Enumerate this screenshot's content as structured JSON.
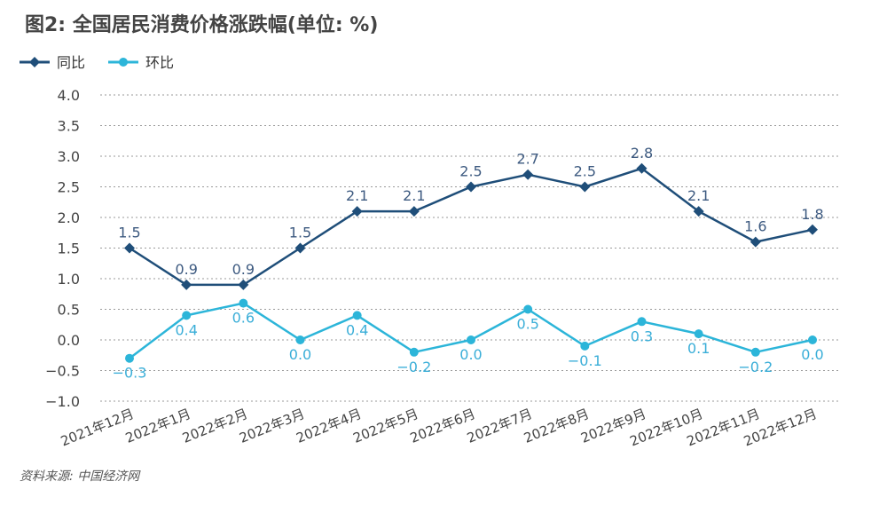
{
  "chart_data": {
    "type": "line",
    "title": "图2: 全国居民消费价格涨跌幅(单位: %)",
    "source": "资料来源: 中国经济网",
    "categories": [
      "2021年12月",
      "2022年1月",
      "2022年2月",
      "2022年3月",
      "2022年4月",
      "2022年5月",
      "2022年6月",
      "2022年7月",
      "2022年8月",
      "2022年9月",
      "2022年10月",
      "2022年11月",
      "2022年12月"
    ],
    "ylim": [
      -1.0,
      4.0
    ],
    "yticks": [
      "4.0",
      "3.5",
      "3.0",
      "2.5",
      "2.0",
      "1.5",
      "1.0",
      "0.5",
      "0.0",
      "−0.5",
      "−1.0"
    ],
    "grid": true,
    "legend_position": "top-left",
    "series": [
      {
        "name": "同比",
        "color": "#1f4e79",
        "marker": "diamond",
        "label_position": "above",
        "values": [
          1.5,
          0.9,
          0.9,
          1.5,
          2.1,
          2.1,
          2.5,
          2.7,
          2.5,
          2.8,
          2.1,
          1.6,
          1.8
        ],
        "labels": [
          "1.5",
          "0.9",
          "0.9",
          "1.5",
          "2.1",
          "2.1",
          "2.5",
          "2.7",
          "2.5",
          "2.8",
          "2.1",
          "1.6",
          "1.8"
        ]
      },
      {
        "name": "环比",
        "color": "#2cb5d9",
        "marker": "circle",
        "label_position": "below",
        "values": [
          -0.3,
          0.4,
          0.6,
          0.0,
          0.4,
          -0.2,
          0.0,
          0.5,
          -0.1,
          0.3,
          0.1,
          -0.2,
          0.0
        ],
        "labels": [
          "−0.3",
          "0.4",
          "0.6",
          "0.0",
          "0.4",
          "−0.2",
          "0.0",
          "0.5",
          "−0.1",
          "0.3",
          "0.1",
          "−0.2",
          "0.0"
        ]
      }
    ]
  }
}
